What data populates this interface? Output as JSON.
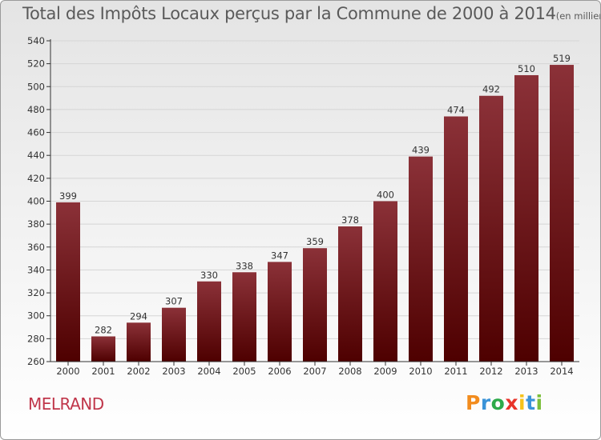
{
  "header": {
    "title": "Total des Impôts Locaux perçus par la Commune de 2000 à 2014",
    "unit": "(en milliers d'€)"
  },
  "footer": {
    "commune": "MELRAND",
    "logo_text": "Proxiti",
    "logo_colors": [
      "#f28c1e",
      "#3a93d8",
      "#2eaa4a",
      "#e8342a",
      "#f5c21b",
      "#3a93d8",
      "#7bbf3a"
    ]
  },
  "colors": {
    "bar_top": "#8b3138",
    "bar_bottom": "#4e0000",
    "grid": "#d5d5d5",
    "axis": "#333333"
  },
  "chart_data": {
    "type": "bar",
    "title": "Total des Impôts Locaux perçus par la Commune de 2000 à 2014",
    "xlabel": "",
    "ylabel": "en milliers d'€",
    "categories": [
      "2000",
      "2001",
      "2002",
      "2003",
      "2004",
      "2005",
      "2006",
      "2007",
      "2008",
      "2009",
      "2010",
      "2011",
      "2012",
      "2013",
      "2014"
    ],
    "values": [
      399,
      282,
      294,
      307,
      330,
      338,
      347,
      359,
      378,
      400,
      439,
      474,
      492,
      510,
      519
    ],
    "ylim": [
      260,
      540
    ],
    "yticks": [
      260,
      280,
      300,
      320,
      340,
      360,
      380,
      400,
      420,
      440,
      460,
      480,
      500,
      520,
      540
    ],
    "grid": true,
    "data_labels": true
  }
}
